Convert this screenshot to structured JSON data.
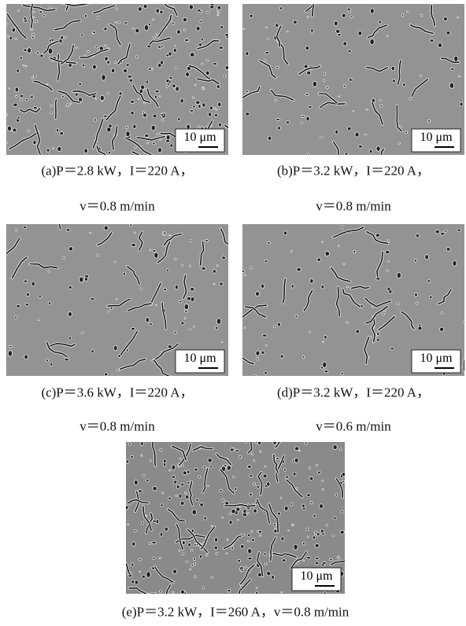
{
  "panels": [
    {
      "scale_label": "10 μm",
      "caption": [
        "(a)P＝2.8 kW，I＝220 A，",
        "v＝0.8 m/min"
      ]
    },
    {
      "scale_label": "10 μm",
      "caption": [
        "(b)P＝3.2 kW，I＝220 A，",
        "v＝0.8 m/min"
      ]
    },
    {
      "scale_label": "10 μm",
      "caption": [
        "(c)P＝3.6 kW，I＝220 A，",
        "v＝0.8 m/min"
      ]
    },
    {
      "scale_label": "10 μm",
      "caption": [
        "(d)P＝3.2 kW，I＝220 A，",
        "v＝0.6 m/min"
      ]
    },
    {
      "scale_label": "10 μm",
      "caption": [
        "(e)P＝3.2 kW，I＝260 A，v＝0.8 m/min"
      ]
    }
  ]
}
